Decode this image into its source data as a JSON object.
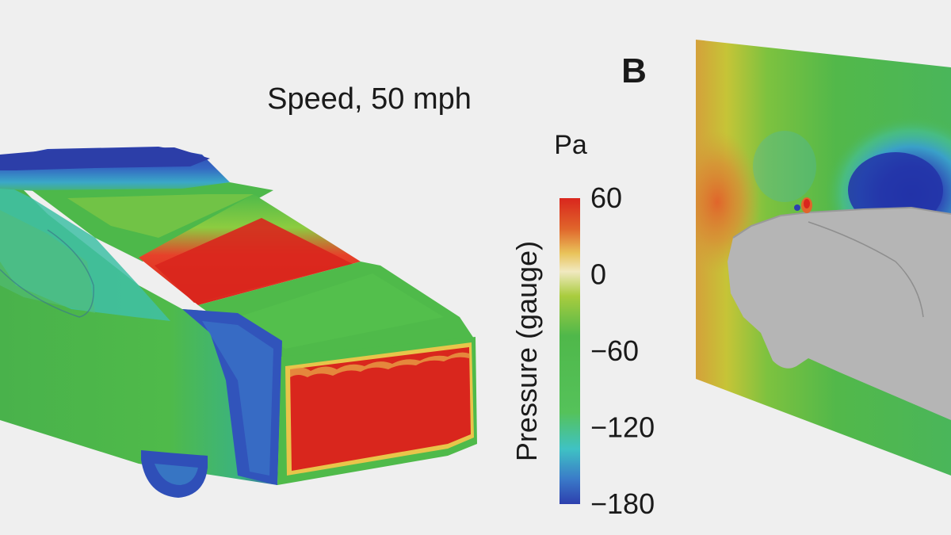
{
  "panel_label": "B",
  "speed_label": "Speed, 50 mph",
  "colorbar": {
    "unit": "Pa",
    "axis_label": "Pressure (gauge)",
    "ticks": [
      "60",
      "0",
      "−60",
      "−120",
      "−180"
    ],
    "range": [
      -180,
      60
    ],
    "colormap": [
      "#2d3fae",
      "#3a79c8",
      "#3fc2c4",
      "#55c25a",
      "#4fb84a",
      "#a9cc3e",
      "#f1e9c0",
      "#e0b64b",
      "#e0652b",
      "#d9261d"
    ]
  },
  "colors": {
    "background": "#efefef",
    "car_grey": "#b5b5b5",
    "high_pressure": "#d9261d",
    "low_pressure": "#2d3fae",
    "neutral": "#4fb84a"
  }
}
